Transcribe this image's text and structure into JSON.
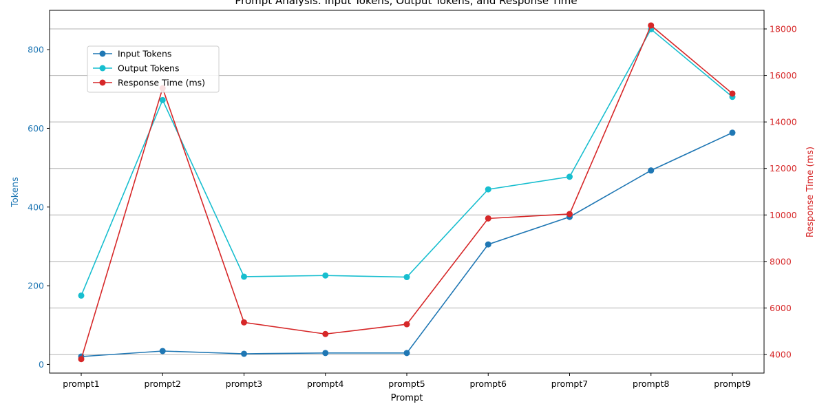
{
  "chart_data": {
    "type": "line",
    "title": "Prompt Analysis: Input Tokens, Output Tokens, and Response Time",
    "xlabel": "Prompt",
    "ylabel_left": "Tokens",
    "ylabel_right": "Response Time (ms)",
    "categories": [
      "prompt1",
      "prompt2",
      "prompt3",
      "prompt4",
      "prompt5",
      "prompt6",
      "prompt7",
      "prompt8",
      "prompt9"
    ],
    "ylim_left": [
      -22,
      900
    ],
    "yticks_left": [
      0,
      200,
      400,
      600,
      800
    ],
    "ylim_right": [
      3200,
      18800
    ],
    "yticks_right": [
      4000,
      6000,
      8000,
      10000,
      12000,
      14000,
      16000,
      18000
    ],
    "grid": "horizontal lines at right-axis ticks",
    "legend_position": "upper-left",
    "series": [
      {
        "name": "Input Tokens",
        "axis": "left",
        "color": "#1f77b4",
        "values": [
          20,
          34,
          27,
          29,
          29,
          305,
          375,
          493,
          589
        ]
      },
      {
        "name": "Output Tokens",
        "axis": "left",
        "color": "#17becf",
        "values": [
          175,
          672,
          223,
          226,
          222,
          445,
          477,
          852,
          680
        ]
      },
      {
        "name": "Response Time (ms)",
        "axis": "right",
        "color": "#d62728",
        "values": [
          3800,
          15450,
          5380,
          4880,
          5300,
          9850,
          10040,
          18150,
          15220
        ]
      }
    ]
  },
  "colors": {
    "left_axis": "#1f77b4",
    "right_axis": "#d62728",
    "grid": "#b0b0b0"
  }
}
